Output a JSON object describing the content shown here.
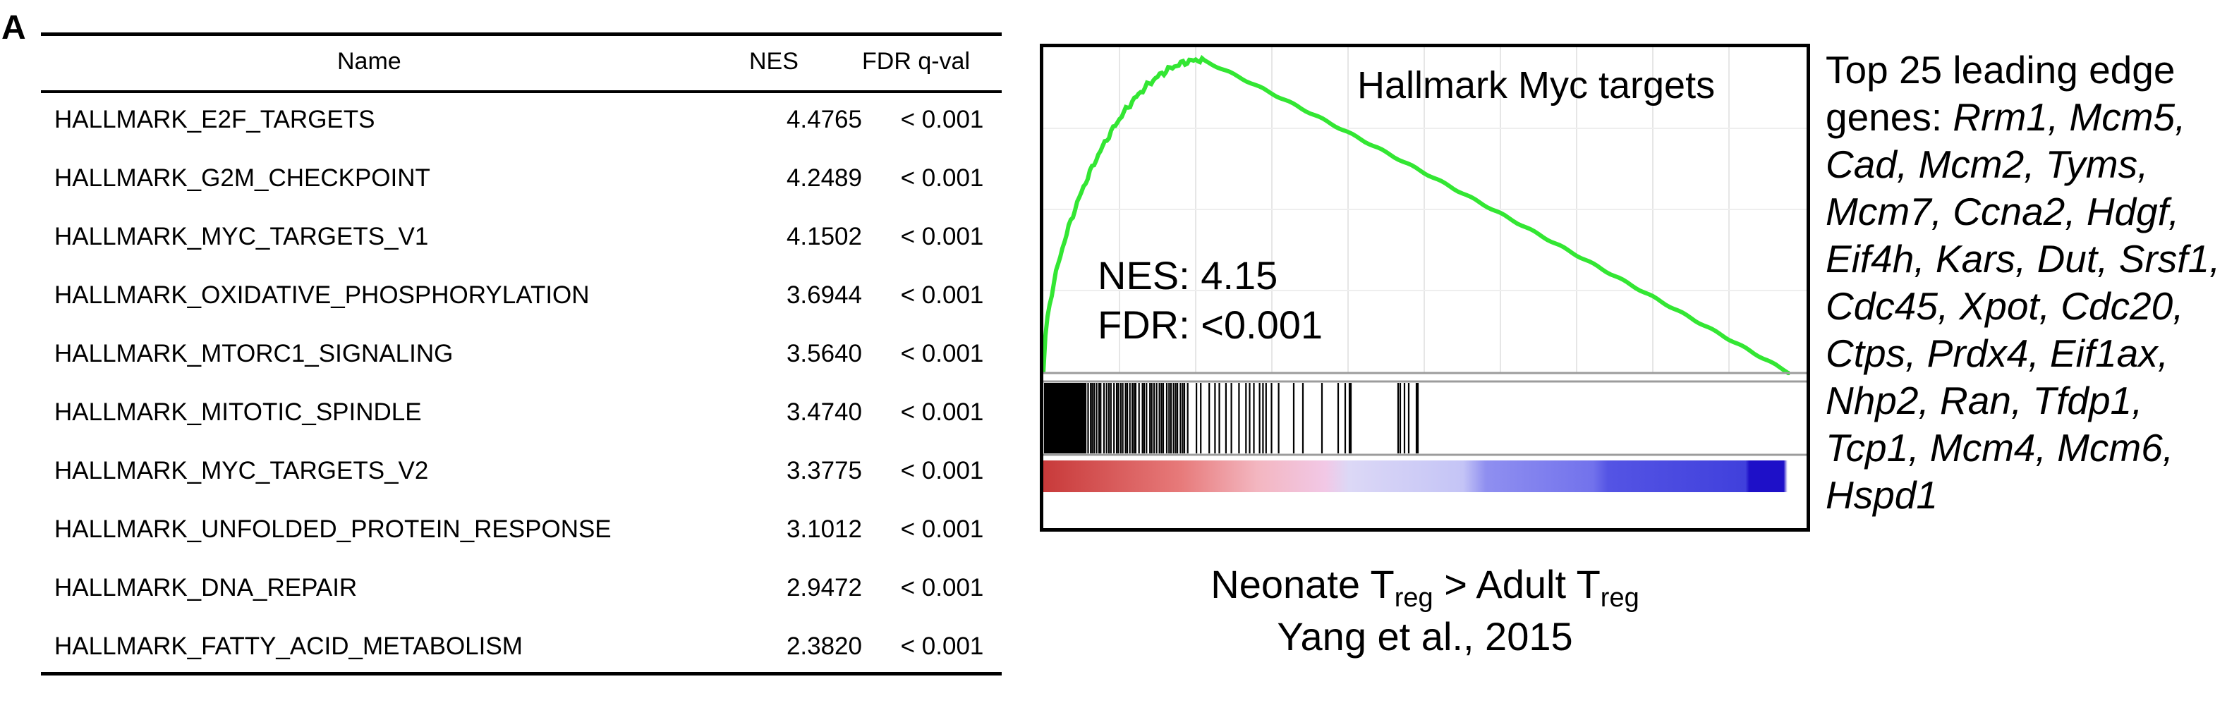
{
  "panel_label": "A",
  "table": {
    "headers": {
      "name": "Name",
      "nes": "NES",
      "fdr": "FDR q-val"
    },
    "rows": [
      {
        "name": "HALLMARK_E2F_TARGETS",
        "nes": "4.4765",
        "fdr": "< 0.001"
      },
      {
        "name": "HALLMARK_G2M_CHECKPOINT",
        "nes": "4.2489",
        "fdr": "< 0.001"
      },
      {
        "name": "HALLMARK_MYC_TARGETS_V1",
        "nes": "4.1502",
        "fdr": "< 0.001"
      },
      {
        "name": "HALLMARK_OXIDATIVE_PHOSPHORYLATION",
        "nes": "3.6944",
        "fdr": "< 0.001"
      },
      {
        "name": "HALLMARK_MTORC1_SIGNALING",
        "nes": "3.5640",
        "fdr": "< 0.001"
      },
      {
        "name": "HALLMARK_MITOTIC_SPINDLE",
        "nes": "3.4740",
        "fdr": "< 0.001"
      },
      {
        "name": "HALLMARK_MYC_TARGETS_V2",
        "nes": "3.3775",
        "fdr": "< 0.001"
      },
      {
        "name": "HALLMARK_UNFOLDED_PROTEIN_RESPONSE",
        "nes": "3.1012",
        "fdr": "< 0.001"
      },
      {
        "name": "HALLMARK_DNA_REPAIR",
        "nes": "2.9472",
        "fdr": "< 0.001"
      },
      {
        "name": "HALLMARK_FATTY_ACID_METABOLISM",
        "nes": "2.3820",
        "fdr": "< 0.001"
      }
    ]
  },
  "plot": {
    "title": "Hallmark Myc targets",
    "nes_text": "NES: 4.15",
    "fdr_text": "FDR: <0.001",
    "caption": {
      "a": "Neonate T",
      "a_sub": "reg",
      "mid": " > Adult T",
      "b_sub": "reg",
      "line2": "Yang et al., 2015"
    },
    "colors": {
      "curve": "#33e633",
      "hits": "#000000"
    }
  },
  "genes": {
    "lead": "Top 25 leading edge genes: ",
    "list": "Rrm1, Mcm5, Cad, Mcm2, Tyms, Mcm7, Ccna2, Hdgf, Eif4h, Kars, Dut, Srsf1, Cdc45, Xpot, Cdc20, Ctps, Prdx4, Eif1ax, Nhp2, Ran, Tfdp1, Tcp1, Mcm4, Mcm6, Hspd1"
  }
}
